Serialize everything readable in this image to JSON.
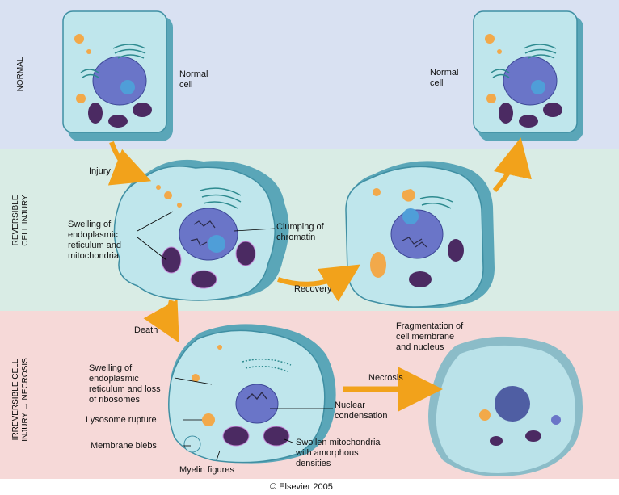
{
  "rows": {
    "normal": "NORMAL",
    "reversible": "REVERSIBLE\nCELL INJURY",
    "irreversible_top": "IRREVERSIBLE CELL",
    "irreversible_bottom": "INJURY",
    "irreversible_arrow": "→",
    "irreversible_end": "NECROSIS"
  },
  "colors": {
    "normal_band": "#d9e1f2",
    "reversible_band": "#d9ece5",
    "irreversible_band": "#f6d9d8",
    "cell_fill": "#bfe6ec",
    "cell_wall": "#66b6c6",
    "nucleus": "#6a75c8",
    "mitochondria": "#4b2a62",
    "arrow": "#f2a21b"
  },
  "labels": {
    "normal_cell_left": "Normal\ncell",
    "normal_cell_right": "Normal\ncell",
    "injury": "Injury",
    "swelling_er_mito": "Swelling of\nendoplasmic\nreticulum and\nmitochondria",
    "clumping": "Clumping of\nchromatin",
    "recovery": "Recovery",
    "death": "Death",
    "swelling_er_ribo": "Swelling of\nendoplasmic\nreticulum and loss\nof ribosomes",
    "lysosome_rupture": "Lysosome rupture",
    "membrane_blebs": "Membrane blebs",
    "myelin": "Myelin figures",
    "nuclear_condensation": "Nuclear\ncondensation",
    "swollen_mito": "Swollen mitochondria\nwith amorphous\ndensities",
    "necrosis": "Necrosis",
    "fragmentation": "Fragmentation of\ncell membrane\nand nucleus"
  },
  "copyright": "© Elsevier 2005"
}
